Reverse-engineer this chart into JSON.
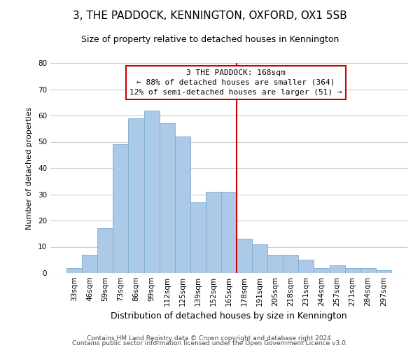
{
  "title": "3, THE PADDOCK, KENNINGTON, OXFORD, OX1 5SB",
  "subtitle": "Size of property relative to detached houses in Kennington",
  "xlabel": "Distribution of detached houses by size in Kennington",
  "ylabel": "Number of detached properties",
  "bin_labels": [
    "33sqm",
    "46sqm",
    "59sqm",
    "73sqm",
    "86sqm",
    "99sqm",
    "112sqm",
    "125sqm",
    "139sqm",
    "152sqm",
    "165sqm",
    "178sqm",
    "191sqm",
    "205sqm",
    "218sqm",
    "231sqm",
    "244sqm",
    "257sqm",
    "271sqm",
    "284sqm",
    "297sqm"
  ],
  "bar_heights": [
    2,
    7,
    17,
    49,
    59,
    62,
    57,
    52,
    27,
    31,
    31,
    13,
    11,
    7,
    7,
    5,
    2,
    3,
    2,
    2,
    1
  ],
  "bar_color": "#adc9e8",
  "bar_edge_color": "#7aaece",
  "highlight_line_color": "#cc0000",
  "highlight_bin_index": 10,
  "ylim": [
    0,
    80
  ],
  "yticks": [
    0,
    10,
    20,
    30,
    40,
    50,
    60,
    70,
    80
  ],
  "annotation_title": "3 THE PADDOCK: 168sqm",
  "annotation_line1": "← 88% of detached houses are smaller (364)",
  "annotation_line2": "12% of semi-detached houses are larger (51) →",
  "annotation_box_color": "#ffffff",
  "annotation_box_edge": "#cc0000",
  "footer_line1": "Contains HM Land Registry data © Crown copyright and database right 2024.",
  "footer_line2": "Contains public sector information licensed under the Open Government Licence v3.0.",
  "grid_color": "#cccccc",
  "background_color": "#ffffff",
  "title_fontsize": 11,
  "subtitle_fontsize": 9,
  "xlabel_fontsize": 9,
  "ylabel_fontsize": 8,
  "tick_fontsize": 7.5,
  "footer_fontsize": 6.5,
  "annotation_fontsize": 8
}
